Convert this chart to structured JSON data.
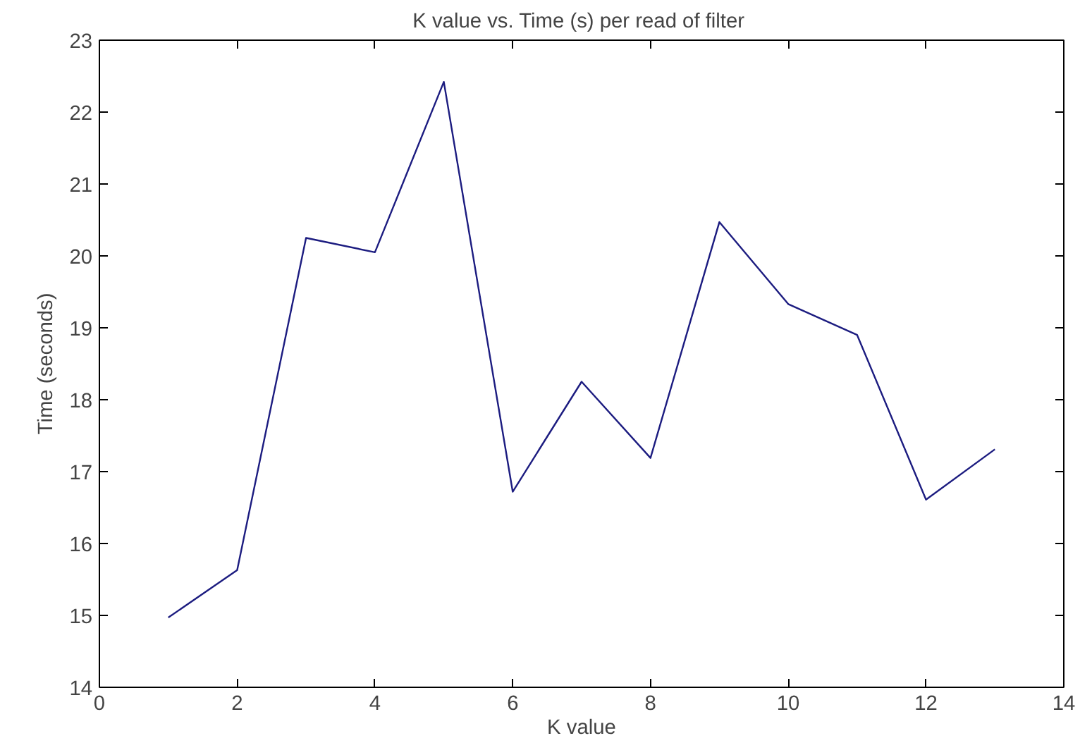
{
  "chart_data": {
    "type": "line",
    "title": "K value vs. Time (s)  per read of filter",
    "xlabel": "K value",
    "ylabel": "Time (seconds)",
    "x": [
      1,
      2,
      3,
      4,
      5,
      6,
      7,
      8,
      9,
      10,
      11,
      12,
      13
    ],
    "series": [
      {
        "color": "#1c1c80",
        "values": [
          14.97,
          15.63,
          20.25,
          20.05,
          22.42,
          16.72,
          18.25,
          17.19,
          20.47,
          19.33,
          18.9,
          16.61,
          17.31
        ]
      }
    ],
    "xlim": [
      0,
      14
    ],
    "ylim": [
      14,
      23
    ],
    "xticks": [
      0,
      2,
      4,
      6,
      8,
      10,
      12,
      14
    ],
    "yticks": [
      14,
      15,
      16,
      17,
      18,
      19,
      20,
      21,
      22,
      23
    ],
    "grid": false,
    "marker": "none",
    "line_style": "solid"
  }
}
